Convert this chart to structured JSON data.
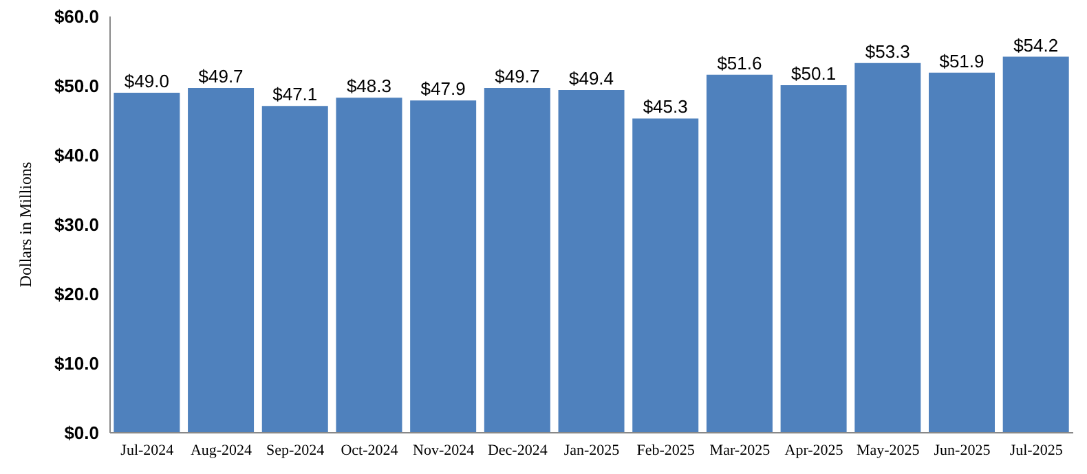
{
  "chart_data": {
    "type": "bar",
    "ylabel": "Dollars in Millions",
    "categories": [
      "Jul-2024",
      "Aug-2024",
      "Sep-2024",
      "Oct-2024",
      "Nov-2024",
      "Dec-2024",
      "Jan-2025",
      "Feb-2025",
      "Mar-2025",
      "Apr-2025",
      "May-2025",
      "Jun-2025",
      "Jul-2025"
    ],
    "values": [
      49.0,
      49.7,
      47.1,
      48.3,
      47.9,
      49.7,
      49.4,
      45.3,
      51.6,
      50.1,
      53.3,
      51.9,
      54.2
    ],
    "value_labels": [
      "$49.0",
      "$49.7",
      "$47.1",
      "$48.3",
      "$47.9",
      "$49.7",
      "$49.4",
      "$45.3",
      "$51.6",
      "$50.1",
      "$53.3",
      "$51.9",
      "$54.2"
    ],
    "color": "#4f81bd",
    "ylim": [
      0,
      60
    ],
    "yticks": [
      {
        "value": 0,
        "label": "$0.0"
      },
      {
        "value": 10,
        "label": "$10.0"
      },
      {
        "value": 20,
        "label": "$20.0"
      },
      {
        "value": 30,
        "label": "$30.0"
      },
      {
        "value": 40,
        "label": "$40.0"
      },
      {
        "value": 50,
        "label": "$50.0"
      },
      {
        "value": 60,
        "label": "$60.0"
      }
    ],
    "grid": false,
    "legend": false
  }
}
